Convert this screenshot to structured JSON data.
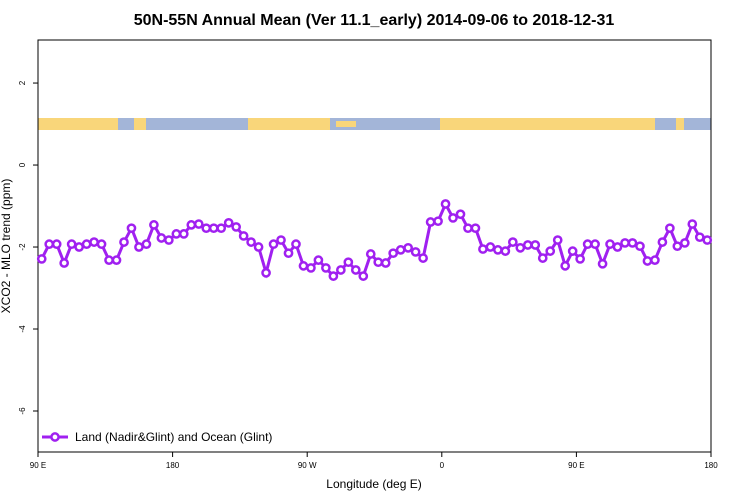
{
  "chart_data": {
    "type": "line",
    "title": "50N-55N Annual Mean (Ver 11.1_early)   2014-09-06 to 2018-12-31",
    "x_label": "Longitude (deg E)",
    "y_label": "XCO2 - MLO trend (ppm)",
    "xlim": [
      90,
      540
    ],
    "ylim": [
      -7,
      3.05
    ],
    "xticks": [
      {
        "value": 90,
        "label": "90 E"
      },
      {
        "value": 180,
        "label": "180"
      },
      {
        "value": 270,
        "label": "90 W"
      },
      {
        "value": 360,
        "label": "0"
      },
      {
        "value": 450,
        "label": "90 E"
      },
      {
        "value": 540,
        "label": "180"
      }
    ],
    "yticks": [
      2,
      0,
      -2,
      -4,
      -6
    ],
    "legend_position": "bottom-left",
    "x": [
      92.5,
      97.5,
      102.5,
      107.5,
      112.5,
      117.5,
      122.5,
      127.5,
      132.5,
      137.5,
      142.5,
      147.5,
      152.5,
      157.5,
      162.5,
      167.5,
      172.5,
      177.5,
      182.5,
      187.5,
      192.5,
      197.5,
      202.5,
      207.5,
      212.5,
      217.5,
      222.5,
      227.5,
      232.5,
      237.5,
      242.5,
      247.5,
      252.5,
      257.5,
      262.5,
      267.5,
      272.5,
      277.5,
      282.5,
      287.5,
      292.5,
      297.5,
      302.5,
      307.5,
      312.5,
      317.5,
      322.5,
      327.5,
      332.5,
      337.5,
      342.5,
      347.5,
      352.5,
      357.5,
      362.5,
      367.5,
      372.5,
      377.5,
      382.5,
      387.5,
      392.5,
      397.5,
      402.5,
      407.5,
      412.5,
      417.5,
      422.5,
      427.5,
      432.5,
      437.5,
      442.5,
      447.5,
      452.5,
      457.5,
      462.5,
      467.5,
      472.5,
      477.5,
      482.5,
      487.5,
      492.5,
      497.5,
      502.5,
      507.5,
      512.5,
      517.5,
      522.5,
      527.5,
      532.5,
      537.5
    ],
    "series": [
      {
        "name": "Land (Nadir&Glint) and Ocean (Glint)",
        "color": "#a020f0",
        "values": [
          -2.29,
          -1.93,
          -1.93,
          -2.39,
          -1.93,
          -2.0,
          -1.93,
          -1.88,
          -1.93,
          -2.32,
          -2.32,
          -1.88,
          -1.54,
          -2.0,
          -1.93,
          -1.46,
          -1.78,
          -1.83,
          -1.68,
          -1.68,
          -1.46,
          -1.44,
          -1.54,
          -1.54,
          -1.54,
          -1.41,
          -1.51,
          -1.73,
          -1.88,
          -2.0,
          -2.63,
          -1.93,
          -1.83,
          -2.15,
          -1.93,
          -2.46,
          -2.51,
          -2.32,
          -2.51,
          -2.71,
          -2.56,
          -2.37,
          -2.56,
          -2.71,
          -2.17,
          -2.37,
          -2.39,
          -2.15,
          -2.07,
          -2.02,
          -2.12,
          -2.27,
          -1.39,
          -1.37,
          -0.95,
          -1.29,
          -1.2,
          -1.54,
          -1.54,
          -2.05,
          -2.0,
          -2.07,
          -2.1,
          -1.88,
          -2.02,
          -1.95,
          -1.95,
          -2.27,
          -2.1,
          -1.83,
          -2.46,
          -2.1,
          -2.29,
          -1.93,
          -1.93,
          -2.41,
          -1.93,
          -2.0,
          -1.9,
          -1.9,
          -1.98,
          -2.34,
          -2.32,
          -1.88,
          -1.54,
          -1.98,
          -1.9,
          -1.44,
          -1.76,
          -1.83
        ]
      }
    ]
  }
}
